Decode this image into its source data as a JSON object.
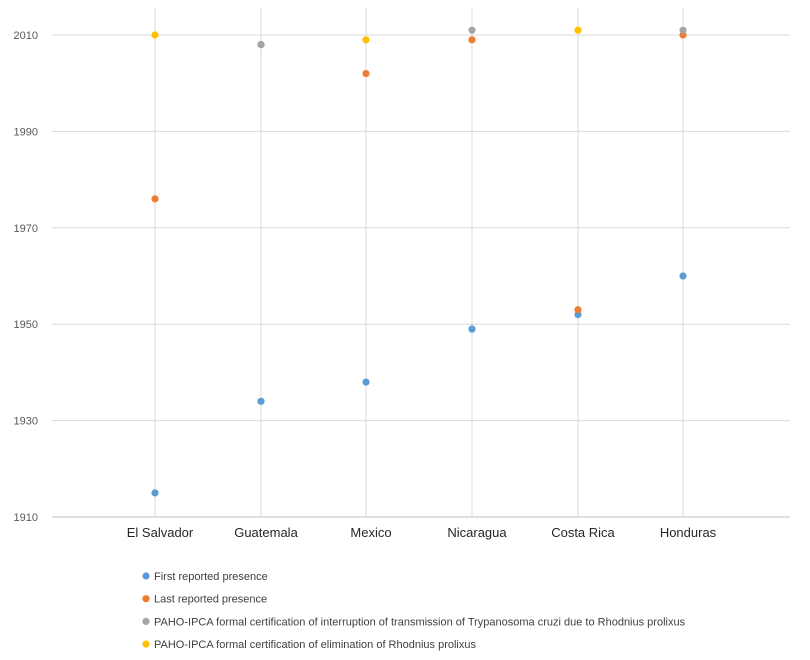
{
  "chart_data": {
    "type": "scatter",
    "title": "",
    "xlabel": "",
    "ylabel": "",
    "categories": [
      "El Salvador",
      "Guatemala",
      "Mexico",
      "Nicaragua",
      "Costa Rica",
      "Honduras"
    ],
    "ylim": [
      1910,
      2010
    ],
    "yticks": [
      1910,
      1930,
      1950,
      1970,
      1990,
      2010
    ],
    "grid": "vertical lines at categories, horizontal gridlines at y ticks",
    "legend_position": "bottom",
    "series": [
      {
        "name": "First reported presence",
        "color": "#5b9bd5",
        "values": [
          1915,
          1934,
          1938,
          1949,
          1952,
          1960
        ]
      },
      {
        "name": "Last reported presence",
        "color": "#ed7d31",
        "values": [
          1976,
          2008,
          2002,
          2009,
          1953,
          2010
        ]
      },
      {
        "name": "PAHO-IPCA formal certification of interruption of transmission of Trypanosoma cruzi due to Rhodnius prolixus",
        "color": "#a5a5a5",
        "values": [
          null,
          2008,
          null,
          2011,
          null,
          2011
        ]
      },
      {
        "name": "PAHO-IPCA formal certification of elimination of Rhodnius prolixus",
        "color": "#ffc000",
        "values": [
          2010,
          null,
          2009,
          null,
          2011,
          null
        ]
      }
    ]
  }
}
